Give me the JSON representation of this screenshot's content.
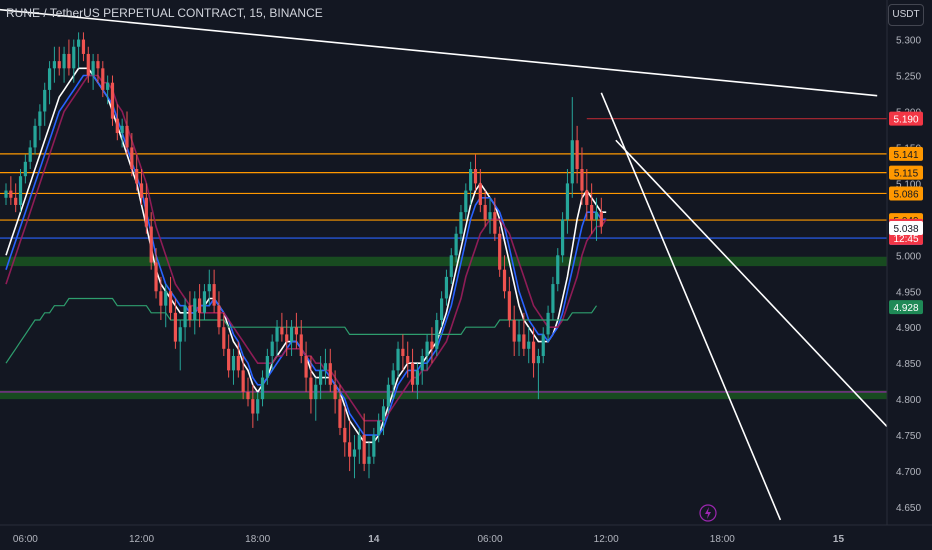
{
  "header": {
    "title": "RUNE / TetherUS PERPETUAL CONTRACT, 15, BINANCE",
    "currency_button": "USDT"
  },
  "chart_data": {
    "type": "candlestick",
    "title": "RUNE / TetherUS PERPETUAL CONTRACT, 15, BINANCE",
    "ylim": [
      4.625,
      5.355
    ],
    "y_ticks": [
      "5.300",
      "5.250",
      "5.200",
      "5.150",
      "5.100",
      "5.050",
      "5.000",
      "4.950",
      "4.900",
      "4.850",
      "4.800",
      "4.750",
      "4.700",
      "4.650"
    ],
    "x_ticks": [
      {
        "label": "06:00",
        "t": 4
      },
      {
        "label": "12:00",
        "t": 28
      },
      {
        "label": "18:00",
        "t": 52
      },
      {
        "label": "14",
        "t": 76
      },
      {
        "label": "06:00",
        "t": 100
      },
      {
        "label": "12:00",
        "t": 124
      },
      {
        "label": "18:00",
        "t": 148
      },
      {
        "label": "15",
        "t": 172
      }
    ],
    "ohlc": [
      [
        5.08,
        5.1,
        5.07,
        5.09
      ],
      [
        5.09,
        5.11,
        5.07,
        5.08
      ],
      [
        5.08,
        5.1,
        5.06,
        5.07
      ],
      [
        5.07,
        5.12,
        5.06,
        5.11
      ],
      [
        5.11,
        5.14,
        5.1,
        5.13
      ],
      [
        5.13,
        5.16,
        5.12,
        5.15
      ],
      [
        5.15,
        5.19,
        5.14,
        5.18
      ],
      [
        5.18,
        5.21,
        5.16,
        5.2
      ],
      [
        5.2,
        5.24,
        5.18,
        5.23
      ],
      [
        5.23,
        5.27,
        5.21,
        5.26
      ],
      [
        5.26,
        5.29,
        5.24,
        5.27
      ],
      [
        5.27,
        5.29,
        5.25,
        5.26
      ],
      [
        5.26,
        5.29,
        5.24,
        5.28
      ],
      [
        5.28,
        5.3,
        5.25,
        5.26
      ],
      [
        5.26,
        5.3,
        5.24,
        5.29
      ],
      [
        5.29,
        5.31,
        5.26,
        5.3
      ],
      [
        5.3,
        5.31,
        5.27,
        5.28
      ],
      [
        5.28,
        5.29,
        5.24,
        5.25
      ],
      [
        5.25,
        5.28,
        5.23,
        5.27
      ],
      [
        5.27,
        5.28,
        5.24,
        5.26
      ],
      [
        5.26,
        5.27,
        5.22,
        5.23
      ],
      [
        5.23,
        5.25,
        5.21,
        5.24
      ],
      [
        5.24,
        5.25,
        5.18,
        5.19
      ],
      [
        5.19,
        5.21,
        5.16,
        5.17
      ],
      [
        5.17,
        5.19,
        5.15,
        5.18
      ],
      [
        5.18,
        5.2,
        5.14,
        5.15
      ],
      [
        5.15,
        5.17,
        5.11,
        5.12
      ],
      [
        5.12,
        5.14,
        5.09,
        5.1
      ],
      [
        5.1,
        5.12,
        5.07,
        5.08
      ],
      [
        5.08,
        5.1,
        5.03,
        5.04
      ],
      [
        5.04,
        5.06,
        4.98,
        4.99
      ],
      [
        4.99,
        5.01,
        4.94,
        4.95
      ],
      [
        4.95,
        4.97,
        4.91,
        4.93
      ],
      [
        4.93,
        4.96,
        4.9,
        4.95
      ],
      [
        4.95,
        4.97,
        4.91,
        4.92
      ],
      [
        4.92,
        4.94,
        4.87,
        4.88
      ],
      [
        4.88,
        4.91,
        4.84,
        4.9
      ],
      [
        4.9,
        4.94,
        4.88,
        4.93
      ],
      [
        4.93,
        4.95,
        4.9,
        4.91
      ],
      [
        4.91,
        4.95,
        4.89,
        4.94
      ],
      [
        4.94,
        4.96,
        4.9,
        4.92
      ],
      [
        4.92,
        4.96,
        4.91,
        4.95
      ],
      [
        4.95,
        4.98,
        4.93,
        4.96
      ],
      [
        4.96,
        4.98,
        4.92,
        4.93
      ],
      [
        4.93,
        4.95,
        4.89,
        4.9
      ],
      [
        4.9,
        4.92,
        4.86,
        4.87
      ],
      [
        4.87,
        4.89,
        4.83,
        4.84
      ],
      [
        4.84,
        4.87,
        4.82,
        4.86
      ],
      [
        4.86,
        4.88,
        4.83,
        4.84
      ],
      [
        4.84,
        4.86,
        4.8,
        4.81
      ],
      [
        4.81,
        4.83,
        4.79,
        4.8
      ],
      [
        4.8,
        4.82,
        4.76,
        4.78
      ],
      [
        4.78,
        4.81,
        4.77,
        4.8
      ],
      [
        4.8,
        4.84,
        4.79,
        4.83
      ],
      [
        4.83,
        4.87,
        4.82,
        4.86
      ],
      [
        4.86,
        4.89,
        4.84,
        4.88
      ],
      [
        4.88,
        4.91,
        4.86,
        4.9
      ],
      [
        4.9,
        4.92,
        4.88,
        4.89
      ],
      [
        4.89,
        4.91,
        4.86,
        4.88
      ],
      [
        4.88,
        4.91,
        4.86,
        4.9
      ],
      [
        4.9,
        4.92,
        4.87,
        4.89
      ],
      [
        4.89,
        4.91,
        4.85,
        4.86
      ],
      [
        4.86,
        4.88,
        4.81,
        4.83
      ],
      [
        4.83,
        4.86,
        4.78,
        4.8
      ],
      [
        4.8,
        4.83,
        4.77,
        4.82
      ],
      [
        4.82,
        4.86,
        4.8,
        4.84
      ],
      [
        4.84,
        4.87,
        4.82,
        4.85
      ],
      [
        4.85,
        4.87,
        4.81,
        4.82
      ],
      [
        4.82,
        4.84,
        4.78,
        4.8
      ],
      [
        4.8,
        4.82,
        4.75,
        4.76
      ],
      [
        4.76,
        4.79,
        4.72,
        4.74
      ],
      [
        4.74,
        4.77,
        4.7,
        4.72
      ],
      [
        4.72,
        4.75,
        4.69,
        4.73
      ],
      [
        4.73,
        4.76,
        4.71,
        4.75
      ],
      [
        4.75,
        4.78,
        4.7,
        4.71
      ],
      [
        4.71,
        4.74,
        4.69,
        4.72
      ],
      [
        4.72,
        4.76,
        4.71,
        4.75
      ],
      [
        4.75,
        4.78,
        4.74,
        4.77
      ],
      [
        4.77,
        4.8,
        4.75,
        4.79
      ],
      [
        4.79,
        4.83,
        4.78,
        4.82
      ],
      [
        4.82,
        4.85,
        4.8,
        4.84
      ],
      [
        4.84,
        4.88,
        4.83,
        4.87
      ],
      [
        4.87,
        4.89,
        4.84,
        4.86
      ],
      [
        4.86,
        4.88,
        4.83,
        4.85
      ],
      [
        4.85,
        4.87,
        4.81,
        4.82
      ],
      [
        4.82,
        4.85,
        4.8,
        4.84
      ],
      [
        4.84,
        4.87,
        4.82,
        4.86
      ],
      [
        4.86,
        4.89,
        4.84,
        4.88
      ],
      [
        4.88,
        4.9,
        4.85,
        4.87
      ],
      [
        4.87,
        4.92,
        4.86,
        4.91
      ],
      [
        4.91,
        4.95,
        4.9,
        4.94
      ],
      [
        4.94,
        4.98,
        4.93,
        4.97
      ],
      [
        4.97,
        5.01,
        4.96,
        5.0
      ],
      [
        5.0,
        5.04,
        4.99,
        5.03
      ],
      [
        5.03,
        5.07,
        5.02,
        5.06
      ],
      [
        5.06,
        5.1,
        5.05,
        5.09
      ],
      [
        5.09,
        5.13,
        5.07,
        5.12
      ],
      [
        5.12,
        5.14,
        5.09,
        5.1
      ],
      [
        5.1,
        5.12,
        5.06,
        5.07
      ],
      [
        5.07,
        5.09,
        5.04,
        5.05
      ],
      [
        5.05,
        5.08,
        5.03,
        5.06
      ],
      [
        5.06,
        5.08,
        5.02,
        5.03
      ],
      [
        5.03,
        5.04,
        4.97,
        4.98
      ],
      [
        4.98,
        5.0,
        4.94,
        4.95
      ],
      [
        4.95,
        4.97,
        4.9,
        4.91
      ],
      [
        4.91,
        4.93,
        4.86,
        4.88
      ],
      [
        4.88,
        4.91,
        4.86,
        4.89
      ],
      [
        4.89,
        4.92,
        4.86,
        4.87
      ],
      [
        4.87,
        4.9,
        4.85,
        4.88
      ],
      [
        4.88,
        4.9,
        4.83,
        4.85
      ],
      [
        4.85,
        4.87,
        4.8,
        4.86
      ],
      [
        4.86,
        4.9,
        4.85,
        4.89
      ],
      [
        4.89,
        4.93,
        4.88,
        4.92
      ],
      [
        4.92,
        4.97,
        4.91,
        4.96
      ],
      [
        4.96,
        5.01,
        4.95,
        5.0
      ],
      [
        5.0,
        5.06,
        4.99,
        5.05
      ],
      [
        5.05,
        5.12,
        5.03,
        5.1
      ],
      [
        5.1,
        5.22,
        5.08,
        5.16
      ],
      [
        5.16,
        5.18,
        5.1,
        5.12
      ],
      [
        5.12,
        5.15,
        5.07,
        5.09
      ],
      [
        5.09,
        5.12,
        5.05,
        5.07
      ],
      [
        5.07,
        5.1,
        5.03,
        5.05
      ],
      [
        5.05,
        5.08,
        5.02,
        5.06
      ],
      [
        5.06,
        5.08,
        5.03,
        5.04
      ]
    ],
    "indicators": {
      "white_ma": [
        5.0,
        5.02,
        5.04,
        5.06,
        5.08,
        5.1,
        5.12,
        5.14,
        5.16,
        5.18,
        5.2,
        5.22,
        5.23,
        5.24,
        5.25,
        5.26,
        5.26,
        5.26,
        5.25,
        5.24,
        5.23,
        5.22,
        5.2,
        5.18,
        5.16,
        5.14,
        5.12,
        5.1,
        5.07,
        5.04,
        5.01,
        4.98,
        4.96,
        4.95,
        4.94,
        4.93,
        4.92,
        4.92,
        4.92,
        4.92,
        4.93,
        4.93,
        4.94,
        4.94,
        4.93,
        4.92,
        4.9,
        4.88,
        4.87,
        4.85,
        4.84,
        4.82,
        4.81,
        4.82,
        4.83,
        4.85,
        4.86,
        4.87,
        4.88,
        4.88,
        4.88,
        4.87,
        4.86,
        4.84,
        4.83,
        4.83,
        4.83,
        4.83,
        4.82,
        4.81,
        4.79,
        4.77,
        4.76,
        4.75,
        4.74,
        4.74,
        4.74,
        4.75,
        4.77,
        4.79,
        4.81,
        4.83,
        4.84,
        4.85,
        4.85,
        4.85,
        4.85,
        4.86,
        4.87,
        4.88,
        4.9,
        4.92,
        4.95,
        4.98,
        5.01,
        5.04,
        5.07,
        5.09,
        5.1,
        5.09,
        5.08,
        5.07,
        5.05,
        5.02,
        4.99,
        4.96,
        4.93,
        4.91,
        4.9,
        4.89,
        4.88,
        4.88,
        4.88,
        4.89,
        4.91,
        4.94,
        4.97,
        5.01,
        5.05,
        5.08,
        5.09,
        5.08,
        5.07,
        5.06,
        5.06
      ],
      "blue_ma": [
        4.98,
        5.0,
        5.02,
        5.04,
        5.06,
        5.08,
        5.1,
        5.12,
        5.14,
        5.16,
        5.18,
        5.2,
        5.21,
        5.22,
        5.23,
        5.24,
        5.25,
        5.25,
        5.25,
        5.24,
        5.23,
        5.22,
        5.21,
        5.19,
        5.17,
        5.15,
        5.13,
        5.11,
        5.09,
        5.06,
        5.03,
        5.0,
        4.98,
        4.96,
        4.95,
        4.94,
        4.93,
        4.93,
        4.92,
        4.92,
        4.93,
        4.93,
        4.93,
        4.94,
        4.93,
        4.92,
        4.91,
        4.89,
        4.88,
        4.86,
        4.85,
        4.83,
        4.82,
        4.82,
        4.83,
        4.84,
        4.85,
        4.86,
        4.87,
        4.88,
        4.88,
        4.87,
        4.86,
        4.85,
        4.84,
        4.84,
        4.84,
        4.83,
        4.82,
        4.81,
        4.8,
        4.78,
        4.77,
        4.76,
        4.75,
        4.75,
        4.75,
        4.75,
        4.76,
        4.78,
        4.8,
        4.82,
        4.83,
        4.84,
        4.84,
        4.84,
        4.85,
        4.85,
        4.86,
        4.87,
        4.89,
        4.91,
        4.93,
        4.96,
        4.99,
        5.02,
        5.05,
        5.07,
        5.08,
        5.08,
        5.08,
        5.07,
        5.06,
        5.04,
        5.01,
        4.98,
        4.95,
        4.93,
        4.91,
        4.9,
        4.89,
        4.89,
        4.88,
        4.89,
        4.9,
        4.92,
        4.95,
        4.98,
        5.01,
        5.04,
        5.06,
        5.06,
        5.06,
        5.05,
        5.05
      ],
      "magenta_ma": [
        4.96,
        4.98,
        5.0,
        5.02,
        5.04,
        5.06,
        5.08,
        5.1,
        5.12,
        5.14,
        5.16,
        5.18,
        5.2,
        5.21,
        5.22,
        5.23,
        5.24,
        5.25,
        5.25,
        5.25,
        5.24,
        5.24,
        5.23,
        5.21,
        5.2,
        5.18,
        5.16,
        5.14,
        5.12,
        5.1,
        5.07,
        5.04,
        5.02,
        5.0,
        4.98,
        4.96,
        4.95,
        4.94,
        4.93,
        4.93,
        4.92,
        4.92,
        4.92,
        4.92,
        4.92,
        4.92,
        4.91,
        4.9,
        4.89,
        4.88,
        4.87,
        4.86,
        4.85,
        4.85,
        4.85,
        4.85,
        4.86,
        4.86,
        4.87,
        4.87,
        4.87,
        4.87,
        4.86,
        4.86,
        4.85,
        4.85,
        4.84,
        4.84,
        4.83,
        4.82,
        4.81,
        4.8,
        4.79,
        4.78,
        4.77,
        4.77,
        4.77,
        4.77,
        4.77,
        4.78,
        4.79,
        4.8,
        4.81,
        4.82,
        4.83,
        4.83,
        4.84,
        4.84,
        4.85,
        4.86,
        4.87,
        4.88,
        4.9,
        4.92,
        4.94,
        4.97,
        4.99,
        5.01,
        5.03,
        5.04,
        5.05,
        5.05,
        5.05,
        5.04,
        5.03,
        5.01,
        4.99,
        4.97,
        4.95,
        4.93,
        4.92,
        4.91,
        4.9,
        4.9,
        4.9,
        4.91,
        4.93,
        4.95,
        4.97,
        5.0,
        5.02,
        5.03,
        5.04,
        5.04,
        5.05
      ],
      "green_ma": [
        4.85,
        4.86,
        4.87,
        4.88,
        4.89,
        4.9,
        4.91,
        4.91,
        4.92,
        4.92,
        4.93,
        4.93,
        4.93,
        4.94,
        4.94,
        4.94,
        4.94,
        4.94,
        4.94,
        4.94,
        4.94,
        4.94,
        4.94,
        4.93,
        4.93,
        4.93,
        4.93,
        4.93,
        4.93,
        4.93,
        4.92,
        4.92,
        4.92,
        4.92,
        4.91,
        4.91,
        4.91,
        4.91,
        4.91,
        4.91,
        4.91,
        4.91,
        4.91,
        4.91,
        4.91,
        4.91,
        4.9,
        4.9,
        4.9,
        4.9,
        4.9,
        4.9,
        4.9,
        4.9,
        4.9,
        4.9,
        4.9,
        4.9,
        4.9,
        4.9,
        4.9,
        4.9,
        4.9,
        4.9,
        4.9,
        4.9,
        4.9,
        4.9,
        4.9,
        4.9,
        4.9,
        4.89,
        4.89,
        4.89,
        4.89,
        4.89,
        4.89,
        4.89,
        4.89,
        4.89,
        4.89,
        4.89,
        4.89,
        4.89,
        4.89,
        4.89,
        4.89,
        4.89,
        4.89,
        4.89,
        4.89,
        4.89,
        4.89,
        4.89,
        4.89,
        4.9,
        4.9,
        4.9,
        4.9,
        4.9,
        4.9,
        4.9,
        4.91,
        4.91,
        4.91,
        4.91,
        4.91,
        4.91,
        4.91,
        4.91,
        4.91,
        4.91,
        4.91,
        4.91,
        4.91,
        4.91,
        4.91,
        4.92,
        4.92,
        4.92,
        4.92,
        4.92,
        4.93
      ]
    },
    "ma_start_index": 0,
    "ma_colors": {
      "white_ma": "#ffffff",
      "blue_ma": "#2962ff",
      "magenta_ma": "#9c1d5c",
      "green_ma": "#2e9e6e"
    },
    "horizontal_lines": [
      {
        "price": 5.19,
        "color": "#b22833",
        "label": "5.190",
        "label_bg": "#f23645",
        "x_start_t": 120
      },
      {
        "price": 5.141,
        "color": "#ff9800",
        "label": "5.141",
        "label_bg": "#ff9800"
      },
      {
        "price": 5.115,
        "color": "#ff9800",
        "label": "5.115",
        "label_bg": "#ff9800"
      },
      {
        "price": 5.086,
        "color": "#ff9800",
        "label": "5.086",
        "label_bg": "#ff9800"
      },
      {
        "price": 5.049,
        "color": "#ff9800",
        "label": "5.049",
        "label_bg": "#ff9800"
      },
      {
        "price": 5.024,
        "color": "#2962ff",
        "label": "5.024",
        "label_bg": "#2962ff"
      },
      {
        "price": 4.81,
        "color": "#9c27b0",
        "label": "",
        "label_bg": ""
      }
    ],
    "zones": [
      {
        "from": 4.985,
        "to": 4.998,
        "color": "#1b5e20"
      },
      {
        "from": 4.8,
        "to": 4.812,
        "color": "#1b5e20"
      }
    ],
    "trend_lines": [
      {
        "t1": -2,
        "p1": 5.342,
        "t2": 180,
        "p2": 5.222,
        "color": "#ffffff"
      },
      {
        "t1": 123,
        "p1": 5.226,
        "t2": 160,
        "p2": 4.632,
        "color": "#ffffff"
      },
      {
        "t1": 126,
        "p1": 5.16,
        "t2": 182,
        "p2": 4.762,
        "color": "#ffffff"
      }
    ],
    "price_labels": [
      {
        "price": 5.041,
        "text": "5.041",
        "bg": "#f23645",
        "fg": "#ffffff",
        "countdown": "12:45"
      },
      {
        "price": 5.038,
        "text": "5.038",
        "bg": "#ffffff",
        "fg": "#131722"
      },
      {
        "price": 4.928,
        "text": "4.928",
        "bg": "#1f8a57",
        "fg": "#ffffff"
      }
    ],
    "grid": false
  }
}
